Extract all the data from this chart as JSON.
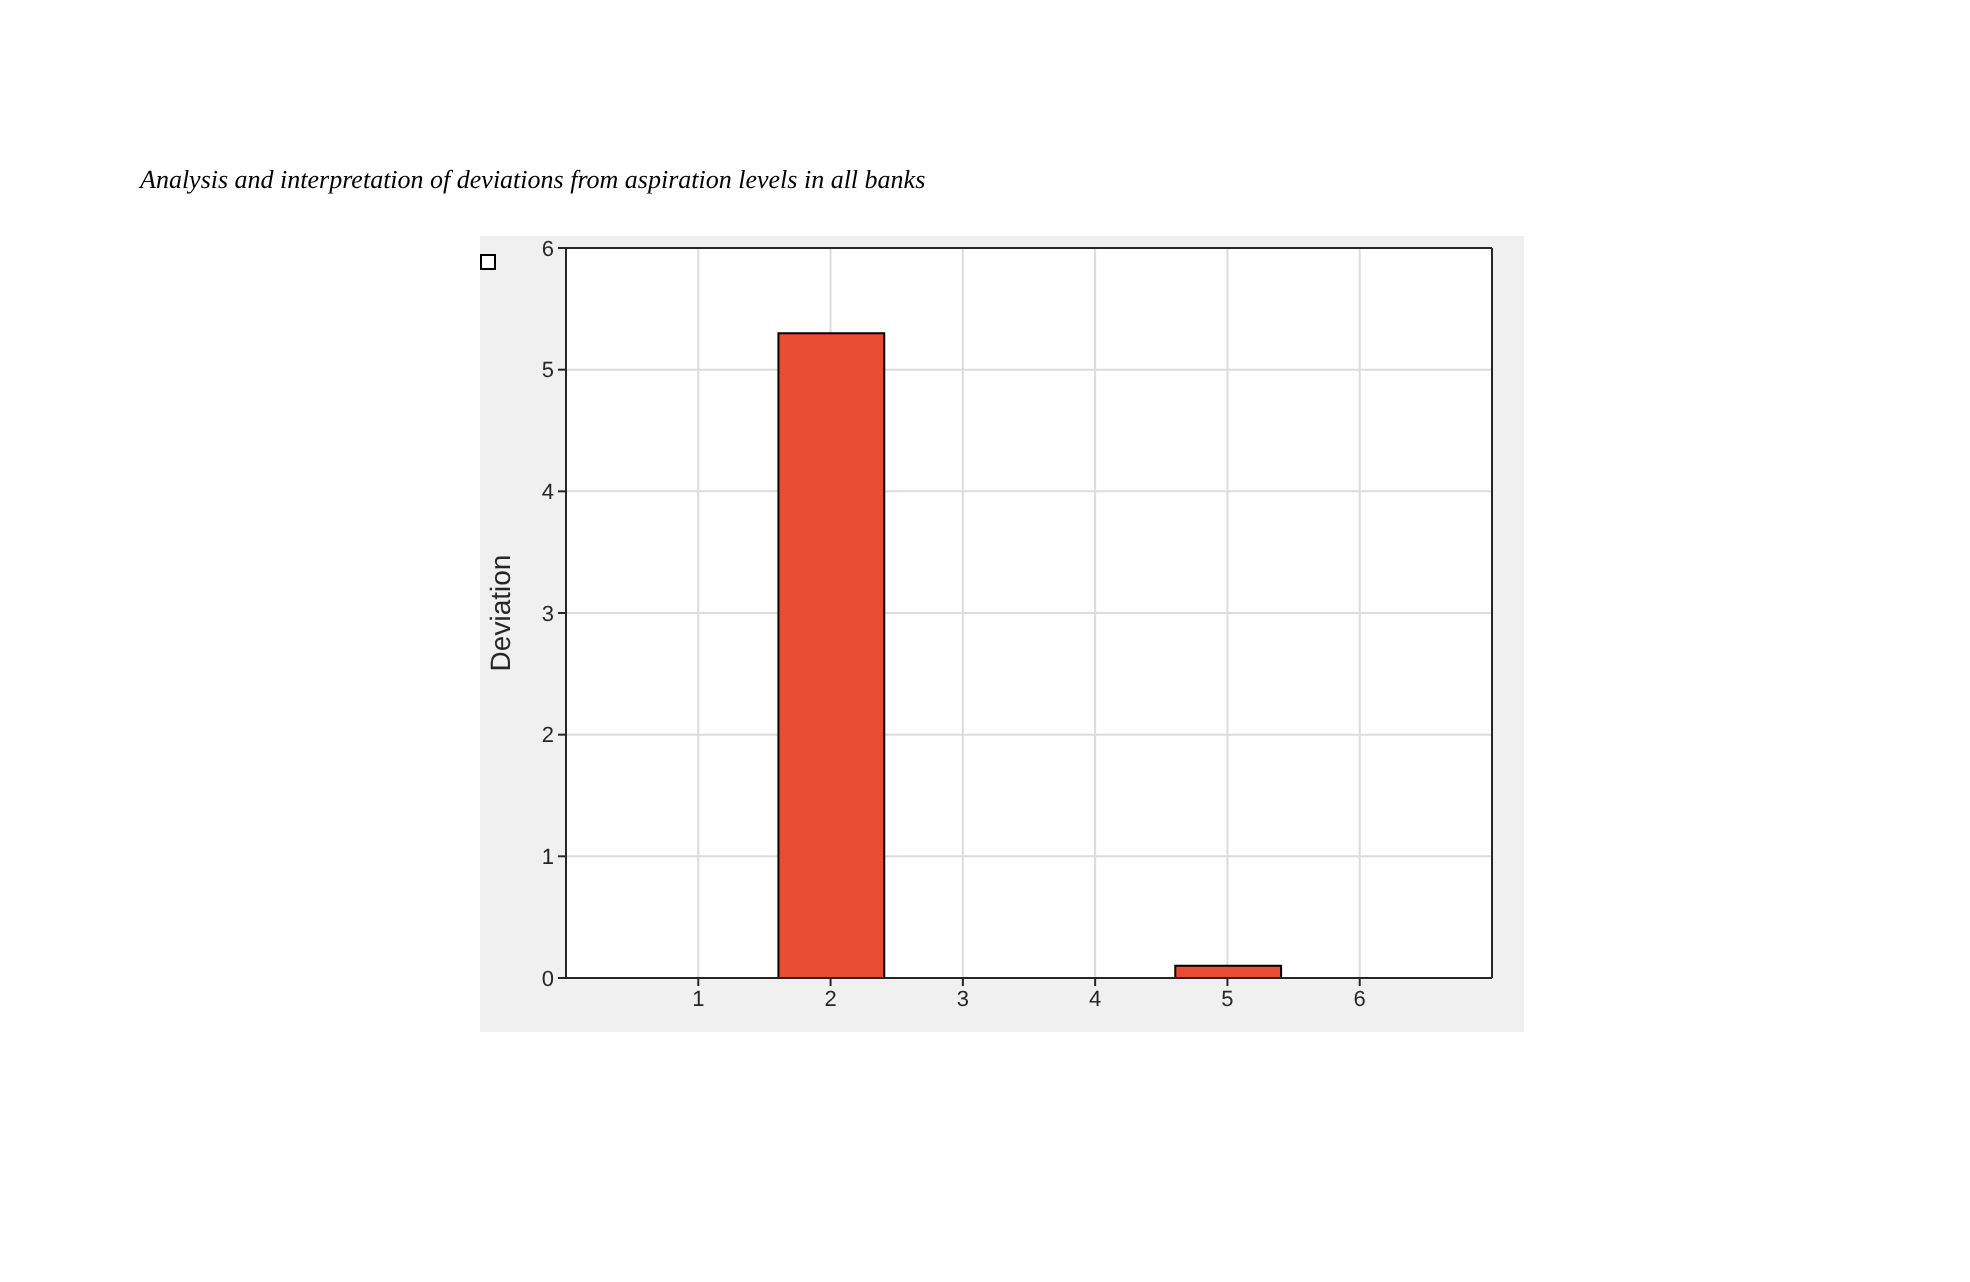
{
  "chart_data": {
    "type": "bar",
    "title": "Analysis and interpretation of deviations from aspiration levels in all banks",
    "ylabel": "Deviation",
    "x": [
      1,
      2,
      3,
      4,
      5,
      6
    ],
    "values": [
      0,
      5.3,
      0,
      0,
      0.1,
      0
    ],
    "color": "#e84c32",
    "xlim": [
      0,
      7
    ],
    "xticks": [
      1,
      2,
      3,
      4,
      5,
      6
    ],
    "ylim": [
      0,
      6
    ],
    "yticks": [
      0,
      1,
      2,
      3,
      4,
      5,
      6
    ],
    "grid": true
  }
}
